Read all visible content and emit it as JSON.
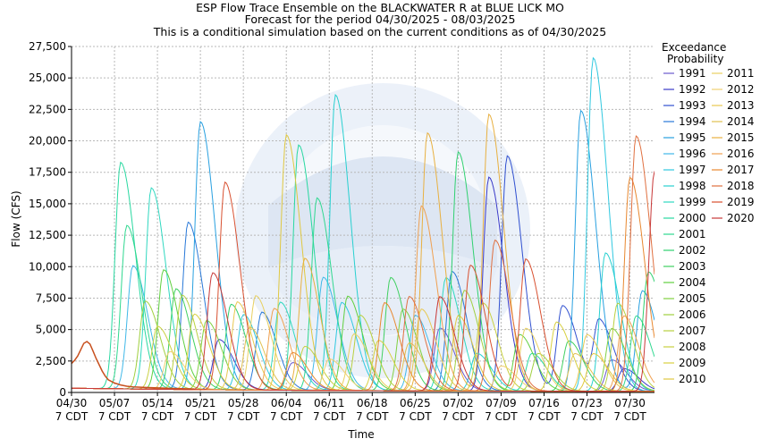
{
  "chart_data": {
    "type": "line",
    "title_lines": [
      "ESP Flow Trace Ensemble on the BLACKWATER R at BLUE LICK MO",
      "Forecast for the period 04/30/2025 - 08/03/2025",
      "This is a conditional simulation based on the current conditions as of 04/30/2025"
    ],
    "xlabel": "Time",
    "ylabel": "Flow (CFS)",
    "ylim": [
      0,
      27500
    ],
    "xlim_days": [
      0,
      95
    ],
    "y_ticks": [
      "0",
      "2,500",
      "5,000",
      "7,500",
      "10,000",
      "12,500",
      "15,000",
      "17,500",
      "20,000",
      "22,500",
      "25,000",
      "27,500"
    ],
    "x_ticks": [
      {
        "date": "04/30",
        "tz": "7 CDT",
        "day": 0
      },
      {
        "date": "05/07",
        "tz": "7 CDT",
        "day": 7
      },
      {
        "date": "05/14",
        "tz": "7 CDT",
        "day": 14
      },
      {
        "date": "05/21",
        "tz": "7 CDT",
        "day": 21
      },
      {
        "date": "05/28",
        "tz": "7 CDT",
        "day": 28
      },
      {
        "date": "06/04",
        "tz": "7 CDT",
        "day": 35
      },
      {
        "date": "06/11",
        "tz": "7 CDT",
        "day": 42
      },
      {
        "date": "06/18",
        "tz": "7 CDT",
        "day": 49
      },
      {
        "date": "06/25",
        "tz": "7 CDT",
        "day": 56
      },
      {
        "date": "07/02",
        "tz": "7 CDT",
        "day": 63
      },
      {
        "date": "07/09",
        "tz": "7 CDT",
        "day": 70
      },
      {
        "date": "07/16",
        "tz": "7 CDT",
        "day": 77
      },
      {
        "date": "07/23",
        "tz": "7 CDT",
        "day": 84
      },
      {
        "date": "07/30",
        "tz": "7 CDT",
        "day": 91
      }
    ],
    "grid": true,
    "legend_title": [
      "Exceedance",
      "Probability"
    ],
    "legend_placement": "right",
    "watermark": "NOAA - NATIONAL OCEANIC AND ATMOSPHERIC ADMINISTRATION - U.S. DEPARTMENT OF COMMERCE",
    "initial_trace": {
      "color": "#c8501e",
      "x": [
        0,
        0.5,
        1,
        1.5,
        2,
        2.5,
        3,
        3.5,
        4,
        4.5,
        5,
        5.5,
        6,
        7,
        8,
        9,
        10,
        12,
        14,
        16,
        18,
        20
      ],
      "y": [
        2300,
        2550,
        2900,
        3400,
        3900,
        4050,
        3850,
        3300,
        2700,
        2200,
        1700,
        1300,
        1000,
        750,
        600,
        500,
        450,
        400,
        360,
        330,
        300,
        280
      ]
    },
    "series": [
      {
        "name": "1991",
        "color": "#6a5acd",
        "peaks": [
          [
            36,
            2200
          ],
          [
            60,
            5000
          ],
          [
            88,
            2500
          ]
        ]
      },
      {
        "name": "1992",
        "color": "#3a3ac8",
        "peaks": [
          [
            24,
            4000
          ],
          [
            68,
            17000
          ],
          [
            90,
            1800
          ]
        ]
      },
      {
        "name": "1993",
        "color": "#3050d0",
        "peaks": [
          [
            71,
            18700
          ],
          [
            80,
            6800
          ],
          [
            86,
            5500
          ]
        ]
      },
      {
        "name": "1994",
        "color": "#2878d8",
        "peaks": [
          [
            19,
            13300
          ],
          [
            31,
            6200
          ],
          [
            62,
            9500
          ]
        ]
      },
      {
        "name": "1995",
        "color": "#28a0e0",
        "peaks": [
          [
            21,
            21300
          ],
          [
            83,
            22300
          ],
          [
            93,
            8000
          ]
        ]
      },
      {
        "name": "1996",
        "color": "#40b8e8",
        "peaks": [
          [
            10,
            9800
          ],
          [
            41,
            9000
          ],
          [
            56,
            6000
          ]
        ]
      },
      {
        "name": "1997",
        "color": "#30c8e0",
        "peaks": [
          [
            85,
            26500
          ],
          [
            44,
            7000
          ],
          [
            28,
            6000
          ]
        ]
      },
      {
        "name": "1998",
        "color": "#28d0d0",
        "peaks": [
          [
            43,
            23500
          ],
          [
            87,
            11000
          ],
          [
            66,
            3000
          ]
        ]
      },
      {
        "name": "1999",
        "color": "#30d8c0",
        "peaks": [
          [
            13,
            16000
          ],
          [
            34,
            7000
          ],
          [
            61,
            9000
          ]
        ]
      },
      {
        "name": "2000",
        "color": "#28d8a0",
        "peaks": [
          [
            8,
            18000
          ],
          [
            37,
            19500
          ],
          [
            75,
            3000
          ]
        ]
      },
      {
        "name": "2001",
        "color": "#30d890",
        "peaks": [
          [
            9,
            13000
          ],
          [
            40,
            15300
          ],
          [
            92,
            6000
          ]
        ]
      },
      {
        "name": "2002",
        "color": "#30d070",
        "peaks": [
          [
            63,
            19000
          ],
          [
            26,
            6800
          ],
          [
            94,
            9500
          ]
        ]
      },
      {
        "name": "2003",
        "color": "#40d060",
        "peaks": [
          [
            17,
            8000
          ],
          [
            52,
            9000
          ],
          [
            81,
            4000
          ]
        ]
      },
      {
        "name": "2004",
        "color": "#60d040",
        "peaks": [
          [
            15,
            9500
          ],
          [
            45,
            7500
          ],
          [
            73,
            4500
          ]
        ]
      },
      {
        "name": "2005",
        "color": "#80d040",
        "peaks": [
          [
            22,
            5500
          ],
          [
            54,
            6500
          ],
          [
            88,
            5000
          ]
        ]
      },
      {
        "name": "2006",
        "color": "#a0d040",
        "peaks": [
          [
            12,
            7000
          ],
          [
            64,
            8000
          ],
          [
            76,
            3000
          ]
        ]
      },
      {
        "name": "2007",
        "color": "#b8d040",
        "peaks": [
          [
            18,
            7500
          ],
          [
            47,
            6000
          ],
          [
            89,
            7000
          ]
        ]
      },
      {
        "name": "2008",
        "color": "#c8d040",
        "peaks": [
          [
            14,
            5000
          ],
          [
            38,
            3500
          ],
          [
            67,
            7000
          ]
        ]
      },
      {
        "name": "2009",
        "color": "#d8d040",
        "peaks": [
          [
            20,
            6000
          ],
          [
            50,
            4000
          ],
          [
            79,
            5500
          ]
        ]
      },
      {
        "name": "2010",
        "color": "#e0c840",
        "peaks": [
          [
            35,
            20300
          ],
          [
            63,
            6000
          ],
          [
            85,
            3000
          ]
        ]
      },
      {
        "name": "2011",
        "color": "#e8d060",
        "peaks": [
          [
            30,
            7500
          ],
          [
            46,
            4500
          ],
          [
            74,
            5000
          ]
        ]
      },
      {
        "name": "2012",
        "color": "#f0d070",
        "peaks": [
          [
            16,
            3000
          ],
          [
            42,
            2500
          ],
          [
            70,
            2000
          ]
        ]
      },
      {
        "name": "2013",
        "color": "#e8c850",
        "peaks": [
          [
            27,
            7000
          ],
          [
            57,
            6500
          ],
          [
            84,
            4500
          ]
        ]
      },
      {
        "name": "2014",
        "color": "#e0c050",
        "peaks": [
          [
            29,
            5000
          ],
          [
            55,
            3800
          ],
          [
            82,
            3000
          ]
        ]
      },
      {
        "name": "2015",
        "color": "#e8b040",
        "peaks": [
          [
            58,
            20500
          ],
          [
            38,
            10500
          ],
          [
            68,
            22000
          ]
        ]
      },
      {
        "name": "2016",
        "color": "#f0a050",
        "peaks": [
          [
            57,
            14700
          ],
          [
            33,
            6500
          ],
          [
            90,
            6000
          ]
        ]
      },
      {
        "name": "2017",
        "color": "#e88830",
        "peaks": [
          [
            91,
            17000
          ],
          [
            51,
            7000
          ],
          [
            36,
            3000
          ]
        ]
      },
      {
        "name": "2018",
        "color": "#e07040",
        "peaks": [
          [
            55,
            7500
          ],
          [
            69,
            12000
          ],
          [
            92,
            20300
          ]
        ]
      },
      {
        "name": "2019",
        "color": "#d85030",
        "peaks": [
          [
            25,
            16500
          ],
          [
            65,
            10000
          ],
          [
            74,
            10500
          ]
        ]
      },
      {
        "name": "2020",
        "color": "#c83838",
        "peaks": [
          [
            23,
            9300
          ],
          [
            60,
            7500
          ],
          [
            95,
            17500
          ]
        ]
      }
    ]
  }
}
